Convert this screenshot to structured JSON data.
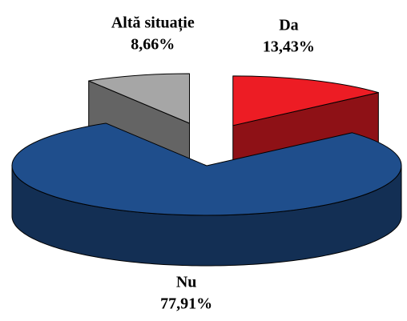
{
  "chart_data": {
    "type": "pie3d",
    "categories": [
      "Da",
      "Nu",
      "Altă situație"
    ],
    "values": [
      13.43,
      77.91,
      8.66
    ],
    "value_labels": [
      "13,43%",
      "77,91%",
      "8,66%"
    ],
    "colors": [
      "#ed1c24",
      "#1f4e8c",
      "#a6a6a6"
    ]
  }
}
